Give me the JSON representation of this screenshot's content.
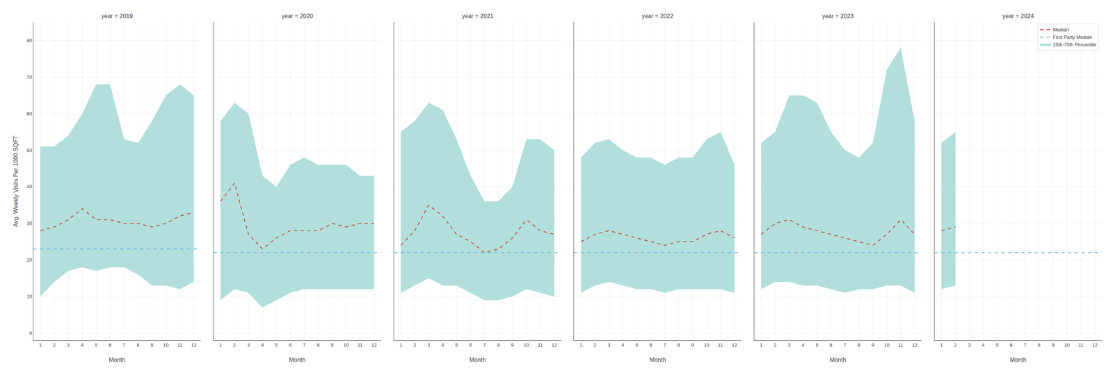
{
  "chart_data": [
    {
      "type": "line",
      "title": "year = 2019",
      "xlabel": "Month",
      "ylabel": "Avg. Weekly Visits Per 1000 SQFT",
      "x": [
        1,
        2,
        3,
        4,
        5,
        6,
        7,
        8,
        9,
        10,
        11,
        12
      ],
      "xlim": [
        0.5,
        12.5
      ],
      "xticks": [
        1,
        2,
        3,
        4,
        5,
        6,
        7,
        8,
        9,
        10,
        11,
        12
      ],
      "ylim": [
        -2,
        85
      ],
      "yticks": [
        0,
        10,
        20,
        30,
        40,
        50,
        60,
        70,
        80
      ],
      "grid": true,
      "series": [
        {
          "name": "Median",
          "color": "#c0392b",
          "line_style": "dashed",
          "values": [
            28,
            29,
            31,
            34,
            31,
            31,
            30,
            30,
            29,
            30,
            32,
            33
          ]
        },
        {
          "name": "First Party Median",
          "type": "hline",
          "color": "#5dade2",
          "line_style": "dashed",
          "value": 23
        },
        {
          "name": "25th-75th Percentile",
          "type": "band",
          "color": "#b2dfdb",
          "lower": [
            10,
            14,
            17,
            18,
            17,
            18,
            18,
            16,
            13,
            13,
            12,
            14
          ],
          "upper": [
            51,
            51,
            54,
            60,
            68,
            68,
            53,
            52,
            58,
            65,
            68,
            65
          ]
        }
      ]
    },
    {
      "type": "line",
      "title": "year = 2020",
      "xlabel": "Month",
      "tick_labels": "x",
      "x": [
        1,
        2,
        3,
        4,
        5,
        6,
        7,
        8,
        9,
        10,
        11,
        12
      ],
      "xlim": [
        0.5,
        12.5
      ],
      "xticks": [
        1,
        2,
        3,
        4,
        5,
        6,
        7,
        8,
        9,
        10,
        11,
        12
      ],
      "ylim": [
        -2,
        85
      ],
      "yticks": [
        0,
        10,
        20,
        30,
        40,
        50,
        60,
        70,
        80
      ],
      "grid": true,
      "series": [
        {
          "name": "Median",
          "color": "#c0392b",
          "line_style": "dashed",
          "values": [
            36,
            41,
            27,
            23,
            26,
            28,
            28,
            28,
            30,
            29,
            30,
            30
          ]
        },
        {
          "name": "First Party Median",
          "type": "hline",
          "color": "#5dade2",
          "line_style": "dashed",
          "value": 22
        },
        {
          "name": "25th-75th Percentile",
          "type": "band",
          "color": "#b2dfdb",
          "lower": [
            9,
            12,
            11,
            7,
            9,
            11,
            12,
            12,
            12,
            12,
            12,
            12
          ],
          "upper": [
            58,
            63,
            60,
            43,
            40,
            46,
            48,
            46,
            46,
            46,
            43,
            43
          ]
        }
      ]
    },
    {
      "type": "line",
      "title": "year = 2021",
      "xlabel": "Month",
      "tick_labels": "x",
      "x": [
        1,
        2,
        3,
        4,
        5,
        6,
        7,
        8,
        9,
        10,
        11,
        12
      ],
      "xlim": [
        0.5,
        12.5
      ],
      "xticks": [
        1,
        2,
        3,
        4,
        5,
        6,
        7,
        8,
        9,
        10,
        11,
        12
      ],
      "ylim": [
        -2,
        85
      ],
      "yticks": [
        0,
        10,
        20,
        30,
        40,
        50,
        60,
        70,
        80
      ],
      "grid": true,
      "series": [
        {
          "name": "Median",
          "color": "#c0392b",
          "line_style": "dashed",
          "values": [
            24,
            28,
            35,
            32,
            27,
            25,
            22,
            23,
            26,
            31,
            28,
            27
          ]
        },
        {
          "name": "First Party Median",
          "type": "hline",
          "color": "#5dade2",
          "line_style": "dashed",
          "value": 22
        },
        {
          "name": "25th-75th Percentile",
          "type": "band",
          "color": "#b2dfdb",
          "lower": [
            11,
            13,
            15,
            13,
            13,
            11,
            9,
            9,
            10,
            12,
            11,
            10
          ],
          "upper": [
            55,
            58,
            63,
            61,
            53,
            43,
            36,
            36,
            40,
            53,
            53,
            50
          ]
        }
      ]
    },
    {
      "type": "line",
      "title": "year = 2022",
      "xlabel": "Month",
      "tick_labels": "x",
      "x": [
        1,
        2,
        3,
        4,
        5,
        6,
        7,
        8,
        9,
        10,
        11,
        12
      ],
      "xlim": [
        0.5,
        12.5
      ],
      "xticks": [
        1,
        2,
        3,
        4,
        5,
        6,
        7,
        8,
        9,
        10,
        11,
        12
      ],
      "ylim": [
        -2,
        85
      ],
      "yticks": [
        0,
        10,
        20,
        30,
        40,
        50,
        60,
        70,
        80
      ],
      "grid": true,
      "series": [
        {
          "name": "Median",
          "color": "#c0392b",
          "line_style": "dashed",
          "values": [
            25,
            27,
            28,
            27,
            26,
            25,
            24,
            25,
            25,
            27,
            28,
            26
          ]
        },
        {
          "name": "First Party Median",
          "type": "hline",
          "color": "#5dade2",
          "line_style": "dashed",
          "value": 22
        },
        {
          "name": "25th-75th Percentile",
          "type": "band",
          "color": "#b2dfdb",
          "lower": [
            11,
            13,
            14,
            13,
            12,
            12,
            11,
            12,
            12,
            12,
            12,
            11
          ],
          "upper": [
            48,
            52,
            53,
            50,
            48,
            48,
            46,
            48,
            48,
            53,
            55,
            46
          ]
        }
      ]
    },
    {
      "type": "line",
      "title": "year = 2023",
      "xlabel": "Month",
      "tick_labels": "x",
      "x": [
        1,
        2,
        3,
        4,
        5,
        6,
        7,
        8,
        9,
        10,
        11,
        12
      ],
      "xlim": [
        0.5,
        12.5
      ],
      "xticks": [
        1,
        2,
        3,
        4,
        5,
        6,
        7,
        8,
        9,
        10,
        11,
        12
      ],
      "ylim": [
        -2,
        85
      ],
      "yticks": [
        0,
        10,
        20,
        30,
        40,
        50,
        60,
        70,
        80
      ],
      "grid": true,
      "series": [
        {
          "name": "Median",
          "color": "#c0392b",
          "line_style": "dashed",
          "values": [
            27,
            30,
            31,
            29,
            28,
            27,
            26,
            25,
            24,
            27,
            31,
            27
          ]
        },
        {
          "name": "First Party Median",
          "type": "hline",
          "color": "#5dade2",
          "line_style": "dashed",
          "value": 22
        },
        {
          "name": "25th-75th Percentile",
          "type": "band",
          "color": "#b2dfdb",
          "lower": [
            12,
            14,
            14,
            13,
            13,
            12,
            11,
            12,
            12,
            13,
            13,
            11
          ],
          "upper": [
            52,
            55,
            65,
            65,
            63,
            55,
            50,
            48,
            52,
            72,
            78,
            58
          ]
        }
      ]
    },
    {
      "type": "line",
      "title": "year = 2024",
      "xlabel": "Month",
      "tick_labels": "x",
      "legend": "upper right",
      "x": [
        1,
        2
      ],
      "xlim": [
        0.5,
        12.5
      ],
      "xticks": [
        1,
        2,
        3,
        4,
        5,
        6,
        7,
        8,
        9,
        10,
        11,
        12
      ],
      "ylim": [
        -2,
        85
      ],
      "yticks": [
        0,
        10,
        20,
        30,
        40,
        50,
        60,
        70,
        80
      ],
      "grid": true,
      "series": [
        {
          "name": "Median",
          "color": "#c0392b",
          "line_style": "dashed",
          "values": [
            28,
            29
          ]
        },
        {
          "name": "First Party Median",
          "type": "hline",
          "color": "#5dade2",
          "line_style": "dashed",
          "value": 22
        },
        {
          "name": "25th-75th Percentile",
          "type": "band",
          "color": "#b2dfdb",
          "lower": [
            12,
            13
          ],
          "upper": [
            52,
            55
          ]
        }
      ]
    }
  ]
}
